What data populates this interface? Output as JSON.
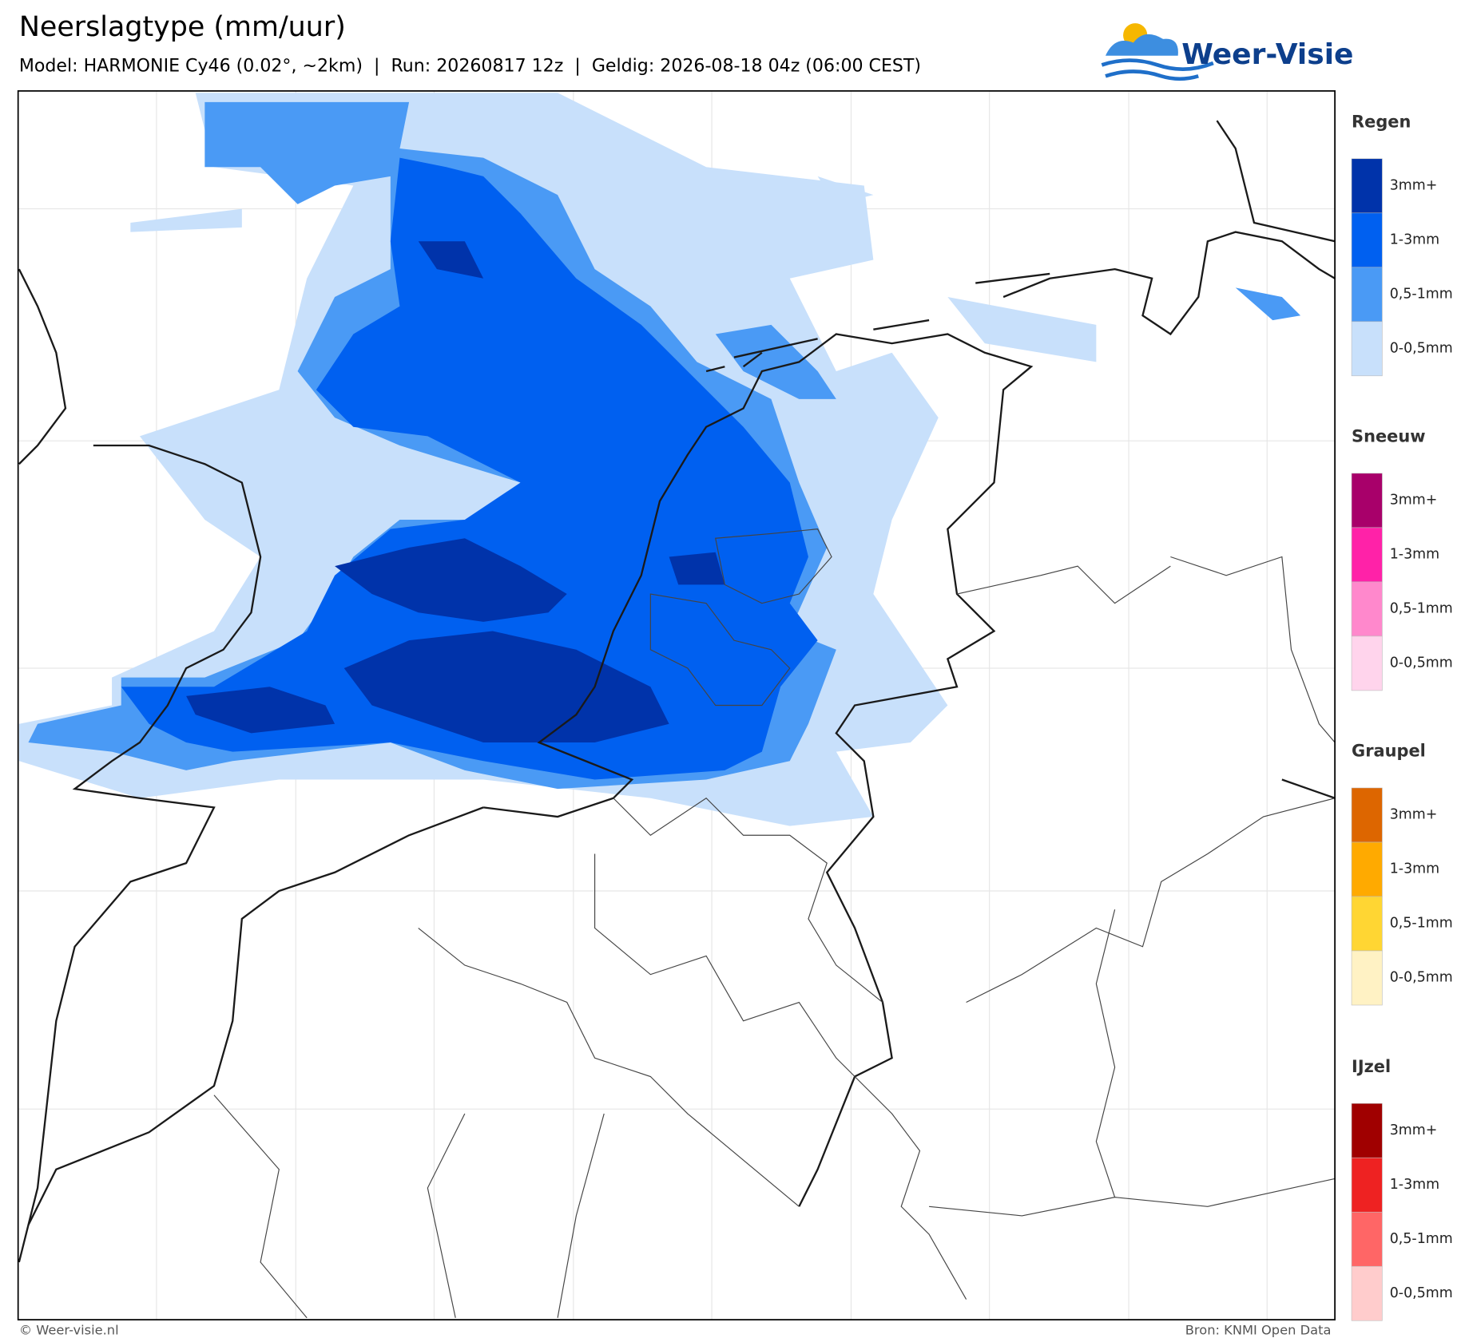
{
  "header": {
    "title": "Neerslagtype (mm/uur)",
    "subtitle": "Model: HARMONIE Cy46 (0.02°, ~2km)  |  Run: 20260817 12z  |  Geldig: 2026-08-18 04z (06:00 CEST)",
    "logo": "Weer-Visie"
  },
  "legend": [
    {
      "title": "Regen",
      "items": [
        {
          "label": "3mm+",
          "color": "#0033aa"
        },
        {
          "label": "1-3mm",
          "color": "#0060f0"
        },
        {
          "label": "0,5-1mm",
          "color": "#4a9af5"
        },
        {
          "label": "0-0,5mm",
          "color": "#c8e0fb"
        }
      ]
    },
    {
      "title": "Sneeuw",
      "items": [
        {
          "label": "3mm+",
          "color": "#a8006a"
        },
        {
          "label": "1-3mm",
          "color": "#ff22a8"
        },
        {
          "label": "0,5-1mm",
          "color": "#ff88cc"
        },
        {
          "label": "0-0,5mm",
          "color": "#ffd4ec"
        }
      ]
    },
    {
      "title": "Graupel",
      "items": [
        {
          "label": "3mm+",
          "color": "#dd6600"
        },
        {
          "label": "1-3mm",
          "color": "#ffaa00"
        },
        {
          "label": "0,5-1mm",
          "color": "#ffd633"
        },
        {
          "label": "0-0,5mm",
          "color": "#fff2c4"
        }
      ]
    },
    {
      "title": "IJzel",
      "items": [
        {
          "label": "3mm+",
          "color": "#a00000"
        },
        {
          "label": "1-3mm",
          "color": "#ee2222"
        },
        {
          "label": "0,5-1mm",
          "color": "#ff6666"
        },
        {
          "label": "0-0,5mm",
          "color": "#ffcccc"
        }
      ]
    }
  ],
  "footer": {
    "copyright": "© Weer-visie.nl",
    "source": "Bron: KNMI Open Data"
  }
}
